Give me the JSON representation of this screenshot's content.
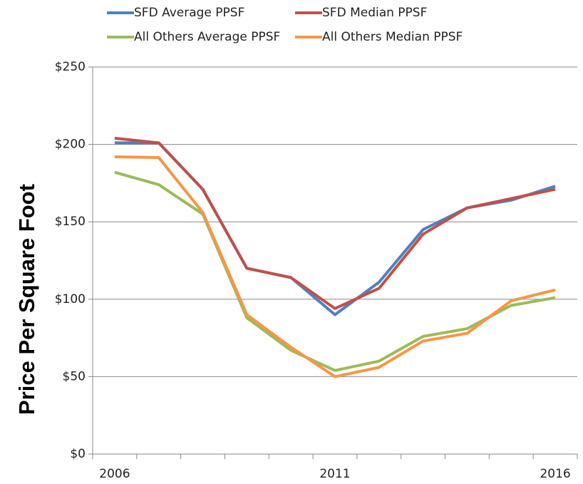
{
  "chart_data": {
    "type": "line",
    "y_label": "Price Per Square Foot",
    "categories": [
      "2006",
      null,
      null,
      null,
      null,
      "2011",
      null,
      null,
      null,
      null,
      "2016"
    ],
    "series": [
      {
        "name": "SFD Average PPSF",
        "color": "#4f81bd",
        "values": [
          201,
          201,
          171,
          120,
          114,
          90,
          111,
          145,
          159,
          164,
          173
        ]
      },
      {
        "name": "SFD Median PPSF",
        "color": "#c0504d",
        "values": [
          204,
          201,
          171,
          120,
          114,
          94,
          107,
          142,
          159,
          165,
          171
        ]
      },
      {
        "name": "All Others Average PPSF",
        "color": "#9bbb59",
        "values": [
          182,
          174,
          155,
          88,
          67,
          54,
          60,
          76,
          81,
          96,
          101
        ]
      },
      {
        "name": "All Others Median PPSF",
        "color": "#f79646",
        "values": [
          192,
          191.5,
          156,
          90,
          69,
          50,
          56,
          73,
          78,
          99,
          106
        ]
      }
    ],
    "ylim": [
      0,
      250
    ],
    "yticks": [
      {
        "value": 0,
        "label": "$0"
      },
      {
        "value": 50,
        "label": "$50"
      },
      {
        "value": 100,
        "label": "$100"
      },
      {
        "value": 150,
        "label": "$150"
      },
      {
        "value": 200,
        "label": "$200"
      },
      {
        "value": 250,
        "label": "$250"
      }
    ],
    "grid": true
  }
}
